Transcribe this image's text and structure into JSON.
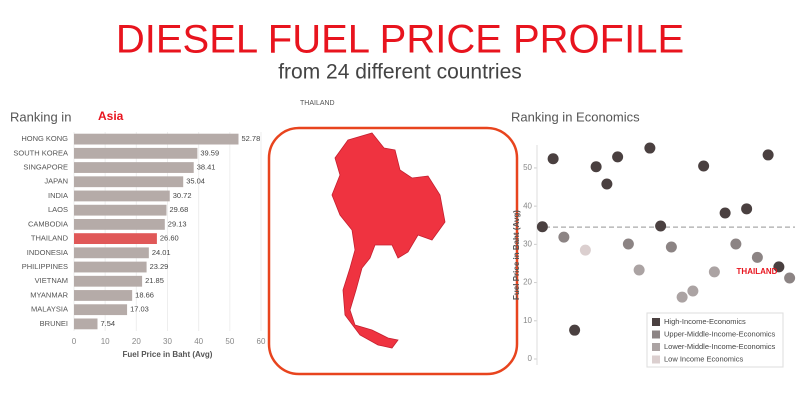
{
  "header": {
    "title": "DIESEL FUEL PRICE PROFILE",
    "subtitle": "from 24 different countries"
  },
  "map": {
    "label": "THAILAND"
  },
  "chart_data": [
    {
      "type": "bar",
      "orientation": "horizontal",
      "title_prefix": "Ranking in",
      "title": "Asia",
      "categories": [
        "HONG KONG",
        "SOUTH KOREA",
        "SINGAPORE",
        "JAPAN",
        "INDIA",
        "LAOS",
        "CAMBODIA",
        "THAILAND",
        "INDONESIA",
        "PHILIPPINES",
        "VIETNAM",
        "MYANMAR",
        "MALAYSIA",
        "BRUNEI"
      ],
      "values": [
        52.78,
        39.59,
        38.41,
        35.04,
        30.72,
        29.68,
        29.13,
        26.6,
        24.01,
        23.29,
        21.85,
        18.66,
        17.03,
        7.54
      ],
      "value_labels": [
        "52.78",
        "39.59",
        "38.41",
        "35.04",
        "30.72",
        "29.68",
        "29.13",
        "26.60",
        "24.01",
        "23.29",
        "21.85",
        "18.66",
        "17.03",
        "7.54"
      ],
      "colors": [
        "#b5aba8",
        "#b5aba8",
        "#b5aba8",
        "#b5aba8",
        "#b5aba8",
        "#b5aba8",
        "#b5aba8",
        "#e05858",
        "#b5aba8",
        "#b5aba8",
        "#b5aba8",
        "#b5aba8",
        "#b5aba8",
        "#b5aba8"
      ],
      "xlim": [
        0,
        60
      ],
      "xticks": [
        0,
        10,
        20,
        30,
        40,
        50,
        60
      ],
      "xlabel": "Fuel Price in Baht (Avg)"
    },
    {
      "type": "scatter",
      "title": "Ranking in Economics",
      "ylabel": "Fuel Price in Baht (Avg)",
      "categories": [
        null,
        null,
        null,
        null,
        null,
        null,
        null,
        null,
        null,
        null,
        null,
        null,
        null,
        null,
        null,
        null,
        null,
        null,
        null,
        null,
        null,
        null,
        null,
        null
      ],
      "series": [
        {
          "name": "High-Income-Economics",
          "color": "#4a4040",
          "values": [
            34.6,
            52.4,
            null,
            7.54,
            null,
            50.3,
            45.8,
            52.9,
            null,
            null,
            55.2,
            34.8,
            null,
            null,
            null,
            50.5,
            null,
            38.2,
            null,
            39.3,
            null,
            53.4,
            24.1,
            null
          ]
        },
        {
          "name": "Upper-Middle-Income-Economics",
          "color": "#8c8484",
          "values": [
            null,
            null,
            31.9,
            null,
            null,
            null,
            null,
            null,
            30.1,
            null,
            null,
            null,
            29.3,
            null,
            null,
            null,
            null,
            null,
            30.1,
            null,
            26.6,
            null,
            null,
            21.2
          ]
        },
        {
          "name": "Lower-Middle-Income-Economics",
          "color": "#aba3a3",
          "values": [
            null,
            null,
            null,
            null,
            null,
            null,
            null,
            null,
            null,
            23.3,
            null,
            null,
            null,
            16.2,
            17.8,
            null,
            22.8,
            null,
            null,
            null,
            null,
            null,
            null,
            null
          ]
        },
        {
          "name": "Low Income Economics",
          "color": "#dbcfcf",
          "values": [
            null,
            null,
            null,
            null,
            28.5,
            null,
            null,
            null,
            null,
            null,
            null,
            null,
            null,
            null,
            null,
            null,
            null,
            null,
            null,
            null,
            null,
            null,
            null,
            null
          ]
        }
      ],
      "ylim": [
        0,
        56
      ],
      "yticks": [
        0,
        10,
        20,
        30,
        40,
        50
      ],
      "ref_line": 34.5,
      "annotation": "THAILAND"
    }
  ]
}
